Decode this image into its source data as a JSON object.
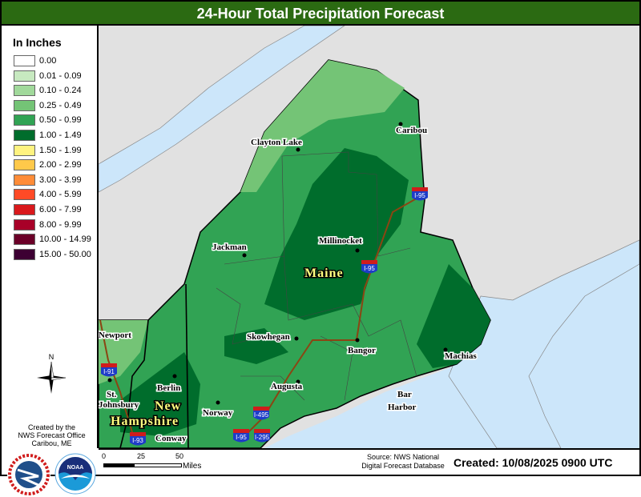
{
  "title": "24-Hour Total Precipitation Forecast",
  "legend": {
    "title": "In Inches",
    "items": [
      {
        "label": "0.00",
        "color": "#ffffff"
      },
      {
        "label": "0.01 - 0.09",
        "color": "#c7e9c0"
      },
      {
        "label": "0.10 - 0.24",
        "color": "#a1d99b"
      },
      {
        "label": "0.25 - 0.49",
        "color": "#74c476"
      },
      {
        "label": "0.50 - 0.99",
        "color": "#31a354"
      },
      {
        "label": "1.00 - 1.49",
        "color": "#006d2c"
      },
      {
        "label": "1.50 - 1.99",
        "color": "#fff380"
      },
      {
        "label": "2.00 - 2.99",
        "color": "#ffc94a"
      },
      {
        "label": "3.00 - 3.99",
        "color": "#ff8c38"
      },
      {
        "label": "4.00 - 5.99",
        "color": "#ff4a26"
      },
      {
        "label": "6.00 - 7.99",
        "color": "#d9191c"
      },
      {
        "label": "8.00 - 9.99",
        "color": "#a80028"
      },
      {
        "label": "10.00 - 14.99",
        "color": "#6b0028"
      },
      {
        "label": "15.00 - 50.00",
        "color": "#3d0033"
      }
    ]
  },
  "compass": {
    "label": "N"
  },
  "credit": [
    "Created by the",
    "NWS Forecast Office",
    "Caribou, ME"
  ],
  "logos": [
    "NATIONAL WEATHER SERVICE",
    "NOAA"
  ],
  "map": {
    "states": [
      "Maine",
      "New",
      "Hampshire"
    ],
    "cities": [
      "Caribou",
      "Clayton Lake",
      "Jackman",
      "Millinocket",
      "Skowhegan",
      "Bangor",
      "Machias",
      "Augusta",
      "Bar",
      "Harbor",
      "Berlin",
      "Norway",
      "Conway",
      "St.",
      "Johnsbury",
      "Newport"
    ],
    "highways": [
      "I-95",
      "I-95",
      "I-495",
      "I-295",
      "I-95",
      "I-91",
      "I-93"
    ]
  },
  "footer": {
    "scale_ticks": [
      "0",
      "25",
      "50"
    ],
    "scale_unit": "Miles",
    "source": [
      "Source: NWS National",
      "Digital Forecast Database"
    ],
    "created": "Created: 10/08/2025 0900 UTC"
  }
}
